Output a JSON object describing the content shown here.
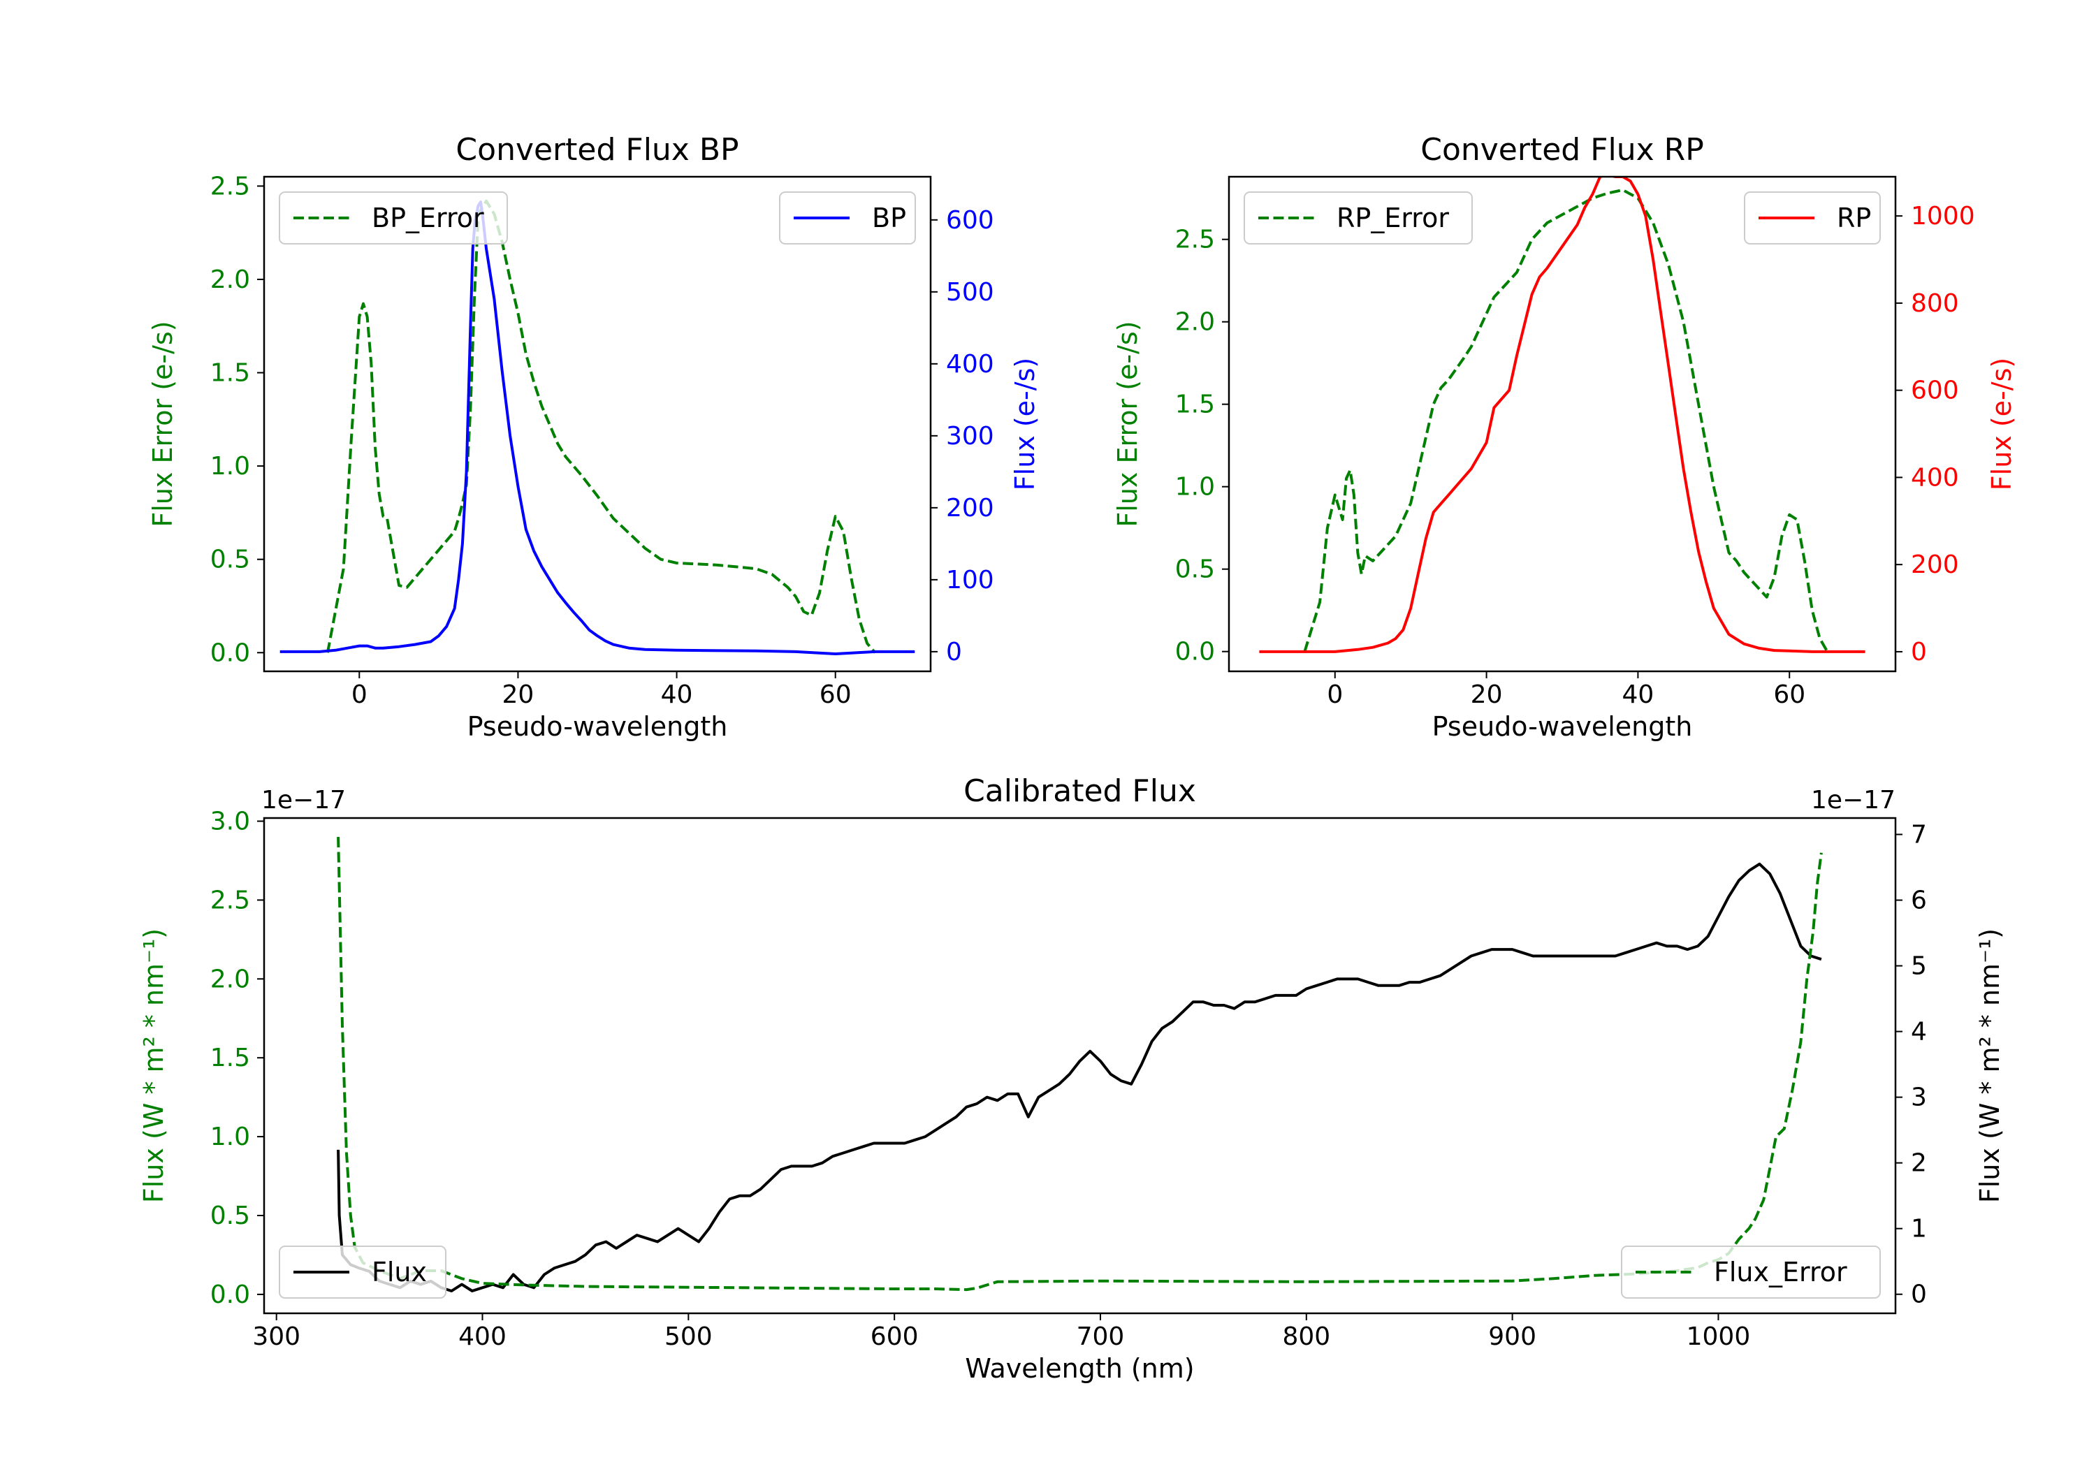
{
  "colors": {
    "green": "#008000",
    "blue": "#0000ff",
    "red": "#ff0000",
    "black": "#000000"
  },
  "chart_data": [
    {
      "id": "bp",
      "type": "line",
      "title": "Converted Flux BP",
      "xlabel": "Pseudo-wavelength",
      "ylabel": "Flux Error (e-/s)",
      "ylabel_right": "Flux (e-/s)",
      "xlim": [
        -12,
        72
      ],
      "ylim": [
        -0.1,
        2.55
      ],
      "ylim_right": [
        -27.3,
        660
      ],
      "xticks": [
        0,
        20,
        40,
        60
      ],
      "yticks": [
        0.0,
        0.5,
        1.0,
        1.5,
        2.0,
        2.5
      ],
      "yticks_right": [
        0,
        100,
        200,
        300,
        400,
        500,
        600
      ],
      "legend_left": "BP_Error",
      "legend_right": "BP",
      "series": [
        {
          "name": "BP_Error",
          "axis": "left",
          "style": "dashed",
          "color": "#008000",
          "x": [
            -4,
            -2,
            -1,
            0,
            0.5,
            1,
            1.5,
            2,
            2.5,
            3,
            3.5,
            4,
            5,
            6,
            8,
            10,
            12,
            12.5,
            13,
            13.5,
            14,
            14.5,
            15,
            16,
            17,
            18,
            19,
            20,
            21,
            22,
            23,
            24,
            25,
            26,
            27,
            28,
            30,
            32,
            34,
            36,
            38,
            40,
            45,
            50,
            52,
            54,
            55,
            56,
            57,
            58,
            59,
            60,
            61,
            62,
            63,
            64,
            65
          ],
          "y": [
            0.0,
            0.45,
            1.15,
            1.8,
            1.87,
            1.8,
            1.55,
            1.1,
            0.85,
            0.73,
            0.72,
            0.6,
            0.36,
            0.35,
            0.45,
            0.55,
            0.65,
            0.72,
            0.8,
            0.9,
            1.3,
            1.9,
            2.35,
            2.42,
            2.35,
            2.2,
            2.0,
            1.82,
            1.6,
            1.45,
            1.32,
            1.22,
            1.12,
            1.05,
            1.0,
            0.95,
            0.84,
            0.72,
            0.64,
            0.56,
            0.5,
            0.48,
            0.47,
            0.45,
            0.42,
            0.35,
            0.3,
            0.22,
            0.2,
            0.32,
            0.55,
            0.73,
            0.65,
            0.4,
            0.18,
            0.05,
            0.0
          ]
        },
        {
          "name": "BP",
          "axis": "right",
          "style": "solid",
          "color": "#0000ff",
          "x": [
            -10,
            -5,
            -3,
            -1,
            0,
            1,
            2,
            3,
            5,
            7,
            9,
            10,
            11,
            12,
            12.5,
            13,
            13.5,
            14,
            14.3,
            14.6,
            15,
            15.3,
            15.6,
            16,
            17,
            18,
            19,
            20,
            21,
            22,
            23,
            24,
            25,
            26,
            27,
            28,
            29,
            30,
            31,
            32,
            34,
            36,
            40,
            50,
            55,
            60,
            65,
            70
          ],
          "y": [
            0,
            0,
            2,
            6,
            8,
            8,
            5,
            5,
            7,
            10,
            14,
            22,
            35,
            60,
            100,
            150,
            250,
            450,
            560,
            600,
            620,
            625,
            600,
            560,
            490,
            390,
            300,
            230,
            170,
            140,
            118,
            100,
            82,
            68,
            55,
            43,
            30,
            22,
            15,
            10,
            5,
            3,
            2,
            1,
            0,
            -3,
            0,
            0
          ]
        }
      ]
    },
    {
      "id": "rp",
      "type": "line",
      "title": "Converted Flux RP",
      "xlabel": "Pseudo-wavelength",
      "ylabel": "Flux Error (e-/s)",
      "ylabel_right": "Flux (e-/s)",
      "xlim": [
        -14,
        74
      ],
      "ylim": [
        -0.12,
        2.88
      ],
      "ylim_right": [
        -45,
        1090
      ],
      "xticks": [
        0,
        20,
        40,
        60
      ],
      "yticks": [
        0.0,
        0.5,
        1.0,
        1.5,
        2.0,
        2.5
      ],
      "yticks_right": [
        0,
        200,
        400,
        600,
        800,
        1000
      ],
      "legend_left": "RP_Error",
      "legend_right": "RP",
      "series": [
        {
          "name": "RP_Error",
          "axis": "left",
          "style": "dashed",
          "color": "#008000",
          "x": [
            -4,
            -2,
            -1,
            0,
            1,
            1.5,
            2,
            2.5,
            3,
            3.5,
            4,
            5,
            6,
            8,
            10,
            12,
            13,
            14,
            15,
            17,
            18,
            20,
            21,
            22,
            24,
            26,
            28,
            30,
            32,
            34,
            36,
            38,
            40,
            42,
            44,
            46,
            48,
            50,
            52,
            53,
            54,
            55,
            56,
            57,
            58,
            59,
            60,
            61,
            62,
            63,
            64,
            65
          ],
          "y": [
            0.0,
            0.3,
            0.75,
            0.95,
            0.8,
            1.05,
            1.1,
            0.95,
            0.6,
            0.47,
            0.58,
            0.55,
            0.6,
            0.7,
            0.9,
            1.3,
            1.5,
            1.6,
            1.65,
            1.78,
            1.85,
            2.05,
            2.15,
            2.2,
            2.3,
            2.5,
            2.6,
            2.65,
            2.7,
            2.75,
            2.78,
            2.8,
            2.75,
            2.6,
            2.35,
            2.0,
            1.5,
            1.0,
            0.6,
            0.55,
            0.48,
            0.43,
            0.38,
            0.33,
            0.45,
            0.7,
            0.83,
            0.8,
            0.55,
            0.25,
            0.08,
            0.0
          ]
        },
        {
          "name": "RP",
          "axis": "right",
          "style": "solid",
          "color": "#ff0000",
          "x": [
            -10,
            -5,
            0,
            3,
            5,
            7,
            8,
            9,
            10,
            11,
            12,
            13,
            14,
            15,
            16,
            18,
            20,
            21,
            22,
            23,
            24,
            25,
            26,
            27,
            28,
            30,
            32,
            33,
            34,
            35,
            36,
            37,
            38,
            39,
            40,
            41,
            42,
            43,
            44,
            45,
            46,
            47,
            48,
            49,
            50,
            52,
            54,
            56,
            58,
            60,
            63,
            66,
            70
          ],
          "y": [
            0,
            0,
            0,
            5,
            10,
            20,
            30,
            50,
            100,
            180,
            260,
            320,
            340,
            360,
            380,
            420,
            480,
            560,
            580,
            600,
            680,
            750,
            820,
            860,
            880,
            930,
            980,
            1020,
            1050,
            1090,
            1095,
            1090,
            1090,
            1080,
            1050,
            1000,
            900,
            780,
            660,
            540,
            420,
            320,
            230,
            160,
            100,
            40,
            18,
            8,
            3,
            2,
            0,
            0,
            0
          ]
        }
      ]
    },
    {
      "id": "cal",
      "type": "line",
      "title": "Calibrated Flux",
      "xlabel": "Wavelength (nm)",
      "ylabel": "Flux (W * m² * nm⁻¹)",
      "ylabel_right": "Flux (W * m² * nm⁻¹)",
      "offset_left": "1e−17",
      "offset_right": "1e−17",
      "xlim": [
        294,
        1086
      ],
      "ylim": [
        -0.12,
        3.02
      ],
      "ylim_right": [
        -0.29,
        7.25
      ],
      "xticks": [
        300,
        400,
        500,
        600,
        700,
        800,
        900,
        1000
      ],
      "yticks": [
        0.0,
        0.5,
        1.0,
        1.5,
        2.0,
        2.5,
        3.0
      ],
      "yticks_right": [
        0,
        1,
        2,
        3,
        4,
        5,
        6,
        7
      ],
      "legend_left": "Flux",
      "legend_right": "Flux_Error",
      "series": [
        {
          "name": "Flux",
          "axis": "right",
          "style": "solid",
          "color": "#000000",
          "x": [
            330,
            330.5,
            332,
            336,
            340,
            345,
            350,
            355,
            360,
            365,
            370,
            375,
            380,
            385,
            390,
            395,
            400,
            405,
            410,
            415,
            420,
            425,
            430,
            435,
            440,
            445,
            450,
            455,
            460,
            465,
            470,
            475,
            480,
            485,
            490,
            495,
            500,
            505,
            510,
            515,
            520,
            525,
            530,
            535,
            540,
            545,
            550,
            555,
            560,
            565,
            570,
            575,
            580,
            585,
            590,
            595,
            600,
            605,
            610,
            615,
            620,
            625,
            630,
            635,
            640,
            645,
            650,
            655,
            660,
            665,
            670,
            675,
            680,
            685,
            690,
            695,
            700,
            705,
            710,
            715,
            720,
            725,
            730,
            735,
            740,
            745,
            750,
            755,
            760,
            765,
            770,
            775,
            780,
            785,
            790,
            795,
            800,
            805,
            810,
            815,
            820,
            825,
            830,
            835,
            840,
            845,
            850,
            855,
            860,
            865,
            870,
            875,
            880,
            885,
            890,
            895,
            900,
            905,
            910,
            915,
            920,
            925,
            930,
            935,
            940,
            945,
            950,
            955,
            960,
            965,
            970,
            975,
            980,
            985,
            990,
            995,
            1000,
            1005,
            1010,
            1015,
            1020,
            1025,
            1030,
            1035,
            1040,
            1045,
            1050
          ],
          "y": [
            2.2,
            1.2,
            0.6,
            0.45,
            0.4,
            0.35,
            0.2,
            0.15,
            0.1,
            0.2,
            0.15,
            0.2,
            0.1,
            0.05,
            0.15,
            0.05,
            0.1,
            0.15,
            0.1,
            0.3,
            0.15,
            0.1,
            0.3,
            0.4,
            0.45,
            0.5,
            0.6,
            0.75,
            0.8,
            0.7,
            0.8,
            0.9,
            0.85,
            0.8,
            0.9,
            1.0,
            0.9,
            0.8,
            1.0,
            1.25,
            1.45,
            1.5,
            1.5,
            1.6,
            1.75,
            1.9,
            1.95,
            1.95,
            1.95,
            2.0,
            2.1,
            2.15,
            2.2,
            2.25,
            2.3,
            2.3,
            2.3,
            2.3,
            2.35,
            2.4,
            2.5,
            2.6,
            2.7,
            2.85,
            2.9,
            3.0,
            2.95,
            3.05,
            3.05,
            2.7,
            3.0,
            3.1,
            3.2,
            3.35,
            3.55,
            3.7,
            3.55,
            3.35,
            3.25,
            3.2,
            3.5,
            3.85,
            4.05,
            4.15,
            4.3,
            4.45,
            4.45,
            4.4,
            4.4,
            4.35,
            4.45,
            4.45,
            4.5,
            4.55,
            4.55,
            4.55,
            4.65,
            4.7,
            4.75,
            4.8,
            4.8,
            4.8,
            4.75,
            4.7,
            4.7,
            4.7,
            4.75,
            4.75,
            4.8,
            4.85,
            4.95,
            5.05,
            5.15,
            5.2,
            5.25,
            5.25,
            5.25,
            5.2,
            5.15,
            5.15,
            5.15,
            5.15,
            5.15,
            5.15,
            5.15,
            5.15,
            5.15,
            5.2,
            5.25,
            5.3,
            5.35,
            5.3,
            5.3,
            5.25,
            5.3,
            5.45,
            5.75,
            6.05,
            6.3,
            6.45,
            6.55,
            6.4,
            6.1,
            5.7,
            5.3,
            5.15,
            5.1
          ]
        },
        {
          "name": "Flux_Error",
          "axis": "left",
          "style": "dashed",
          "color": "#008000",
          "x": [
            330,
            332,
            334,
            336,
            338,
            342,
            350,
            360,
            370,
            380,
            390,
            400,
            420,
            450,
            500,
            550,
            600,
            620,
            635,
            640,
            650,
            700,
            800,
            900,
            920,
            940,
            960,
            980,
            990,
            995,
            1000,
            1005,
            1010,
            1015,
            1018,
            1022,
            1025,
            1028,
            1032,
            1036,
            1040,
            1043,
            1046,
            1048,
            1050
          ],
          "y": [
            2.9,
            1.7,
            0.9,
            0.5,
            0.3,
            0.2,
            0.15,
            0.1,
            0.15,
            0.15,
            0.1,
            0.07,
            0.06,
            0.05,
            0.045,
            0.04,
            0.035,
            0.035,
            0.03,
            0.04,
            0.08,
            0.085,
            0.08,
            0.085,
            0.1,
            0.12,
            0.13,
            0.15,
            0.17,
            0.2,
            0.22,
            0.26,
            0.35,
            0.42,
            0.48,
            0.6,
            0.8,
            1.0,
            1.05,
            1.3,
            1.6,
            2.0,
            2.3,
            2.6,
            2.8
          ]
        }
      ]
    }
  ]
}
